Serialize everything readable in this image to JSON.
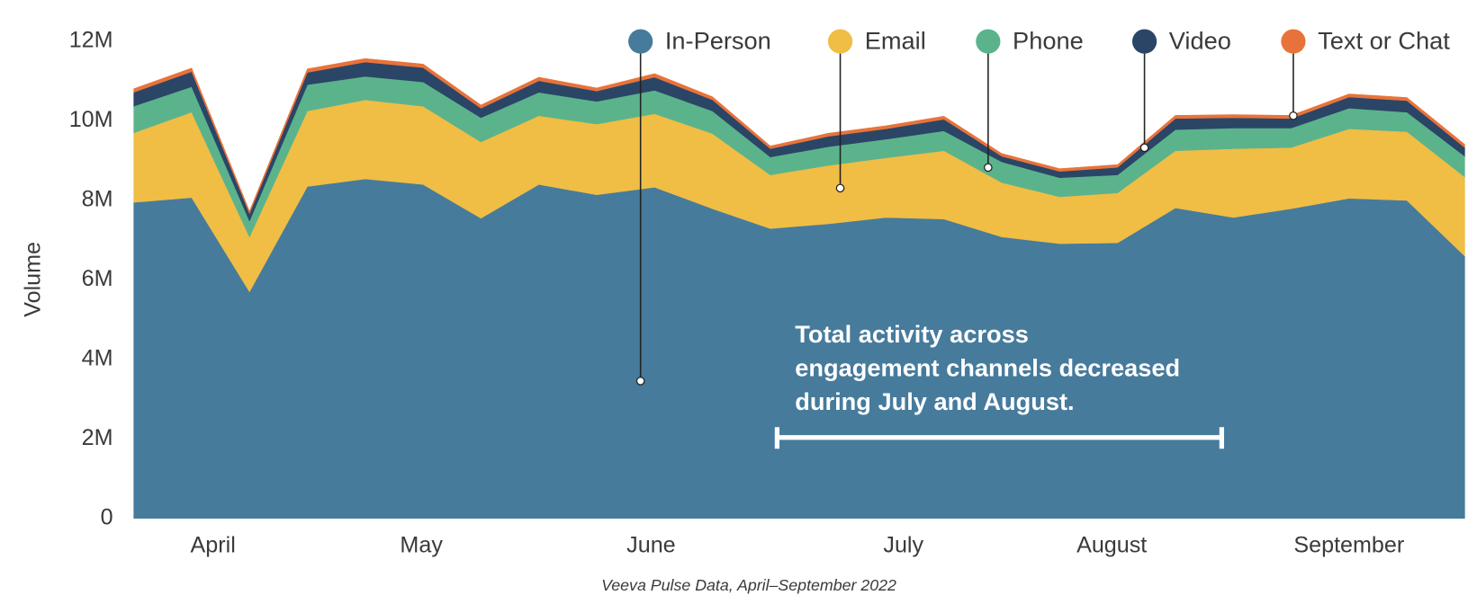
{
  "chart_data": {
    "type": "stacked_area",
    "source": "Veeva Pulse Data, April–September 2022",
    "y_label": "Volume",
    "annotation": [
      "Total activity across",
      "engagement channels decreased",
      "during July and August."
    ],
    "x": [
      0,
      1,
      2,
      3,
      4,
      5,
      6,
      7,
      8,
      9,
      10,
      11,
      12,
      13,
      14,
      15,
      16,
      17,
      18,
      19,
      20,
      21,
      22,
      23
    ],
    "xlim": [
      0,
      23
    ],
    "xticks": [
      {
        "value": 1.37,
        "label": "April"
      },
      {
        "value": 4.97,
        "label": "May"
      },
      {
        "value": 8.94,
        "label": "June"
      },
      {
        "value": 13.3,
        "label": "July"
      },
      {
        "value": 16.9,
        "label": "August"
      },
      {
        "value": 21.0,
        "label": "September"
      }
    ],
    "ylim": [
      0,
      12000000
    ],
    "yticks": [
      0,
      {
        "value": 2000000,
        "label": "2M"
      },
      {
        "value": 4000000,
        "label": "4M"
      },
      {
        "value": 6000000,
        "label": "6M"
      },
      {
        "value": 8000000,
        "label": "8M"
      },
      {
        "value": 10000000,
        "label": "10M"
      },
      {
        "value": 12000000,
        "label": "12M"
      }
    ],
    "series": [
      {
        "name": "In-Person",
        "color": "#467b9c",
        "values": [
          7950000,
          8070000,
          5700000,
          8350000,
          8540000,
          8400000,
          7550000,
          8400000,
          8140000,
          8330000,
          7790000,
          7290000,
          7410000,
          7570000,
          7530000,
          7080000,
          6910000,
          6930000,
          7810000,
          7570000,
          7790000,
          8050000,
          8000000,
          6600000
        ]
      },
      {
        "name": "Email",
        "color": "#f0bd45",
        "values": [
          1750000,
          2150000,
          1380000,
          1900000,
          1990000,
          1970000,
          1920000,
          1730000,
          1780000,
          1850000,
          1890000,
          1350000,
          1470000,
          1500000,
          1720000,
          1370000,
          1180000,
          1260000,
          1440000,
          1730000,
          1540000,
          1750000,
          1730000,
          1990000
        ]
      },
      {
        "name": "Phone",
        "color": "#5bb38c",
        "values": [
          670000,
          640000,
          400000,
          660000,
          590000,
          610000,
          610000,
          590000,
          570000,
          590000,
          570000,
          450000,
          470000,
          470000,
          500000,
          520000,
          480000,
          450000,
          530000,
          520000,
          490000,
          520000,
          490000,
          520000
        ]
      },
      {
        "name": "Video",
        "color": "#2b4566",
        "values": [
          350000,
          380000,
          190000,
          310000,
          360000,
          360000,
          240000,
          290000,
          260000,
          330000,
          280000,
          210000,
          260000,
          260000,
          290000,
          140000,
          160000,
          190000,
          280000,
          260000,
          240000,
          280000,
          290000,
          220000
        ]
      },
      {
        "name": "Text or Chat",
        "color": "#e8733a",
        "values": [
          90000,
          90000,
          60000,
          90000,
          90000,
          90000,
          80000,
          90000,
          80000,
          90000,
          80000,
          70000,
          80000,
          80000,
          80000,
          70000,
          70000,
          70000,
          80000,
          80000,
          80000,
          80000,
          80000,
          80000
        ]
      }
    ]
  }
}
